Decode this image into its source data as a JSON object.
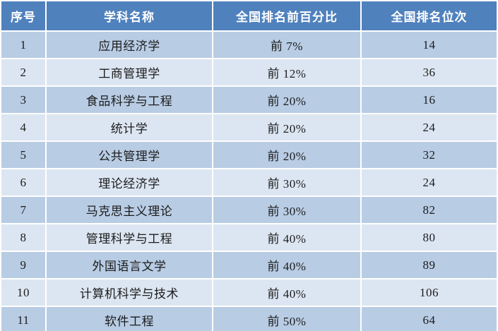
{
  "table": {
    "headers": [
      "序号",
      "学科名称",
      "全国排名前百分比",
      "全国排名位次"
    ],
    "rows": [
      {
        "index": "1",
        "subject": "应用经济学",
        "percent": "前 7%",
        "rank": "14"
      },
      {
        "index": "2",
        "subject": "工商管理学",
        "percent": "前 12%",
        "rank": "36"
      },
      {
        "index": "3",
        "subject": "食品科学与工程",
        "percent": "前 20%",
        "rank": "16"
      },
      {
        "index": "4",
        "subject": "统计学",
        "percent": "前 20%",
        "rank": "24"
      },
      {
        "index": "5",
        "subject": "公共管理学",
        "percent": "前 20%",
        "rank": "32"
      },
      {
        "index": "6",
        "subject": "理论经济学",
        "percent": "前 30%",
        "rank": "24"
      },
      {
        "index": "7",
        "subject": "马克思主义理论",
        "percent": "前 30%",
        "rank": "82"
      },
      {
        "index": "8",
        "subject": "管理科学与工程",
        "percent": "前 40%",
        "rank": "80"
      },
      {
        "index": "9",
        "subject": "外国语言文学",
        "percent": "前 40%",
        "rank": "89"
      },
      {
        "index": "10",
        "subject": "计算机科学与技术",
        "percent": "前 40%",
        "rank": "106"
      },
      {
        "index": "11",
        "subject": "软件工程",
        "percent": "前 50%",
        "rank": "64"
      }
    ]
  },
  "colors": {
    "header_bg": "#4f81bd",
    "row_odd_bg": "#b8cce4",
    "row_even_bg": "#dce6f2",
    "header_text": "#ffffff",
    "body_text": "#1c1c1c",
    "separator": "#ffffff"
  },
  "chart_data": {
    "type": "table",
    "columns": [
      "序号",
      "学科名称",
      "全国排名前百分比",
      "全国排名位次"
    ],
    "rows": [
      [
        "1",
        "应用经济学",
        "前 7%",
        14
      ],
      [
        "2",
        "工商管理学",
        "前 12%",
        36
      ],
      [
        "3",
        "食品科学与工程",
        "前 20%",
        16
      ],
      [
        "4",
        "统计学",
        "前 20%",
        24
      ],
      [
        "5",
        "公共管理学",
        "前 20%",
        32
      ],
      [
        "6",
        "理论经济学",
        "前 30%",
        24
      ],
      [
        "7",
        "马克思主义理论",
        "前 30%",
        82
      ],
      [
        "8",
        "管理科学与工程",
        "前 40%",
        80
      ],
      [
        "9",
        "外国语言文学",
        "前 40%",
        89
      ],
      [
        "10",
        "计算机科学与技术",
        "前 40%",
        106
      ],
      [
        "11",
        "软件工程",
        "前 50%",
        64
      ]
    ]
  }
}
